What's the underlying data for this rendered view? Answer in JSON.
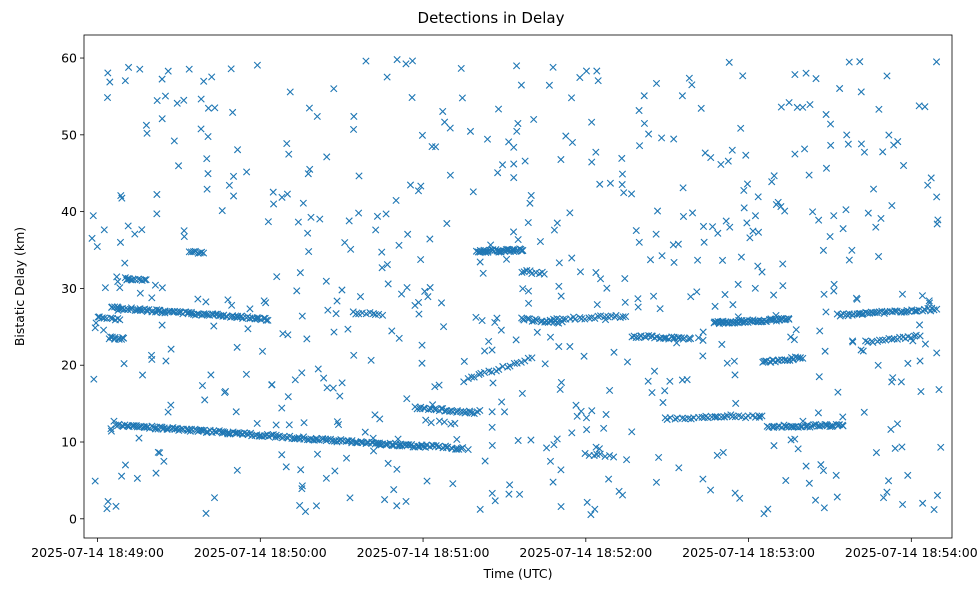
{
  "chart_data": {
    "type": "scatter",
    "title": "Detections in Delay",
    "xlabel": "Time (UTC)",
    "ylabel": "Bistatic Delay (km)",
    "x_start": "2025-07-14 18:48:55",
    "x_end": "2025-07-14 18:54:15",
    "xlim_seconds_from_x_start": [
      0,
      320
    ],
    "ylim": [
      -2.5,
      63
    ],
    "x_ticks": [
      {
        "label": "2025-07-14 18:49:00",
        "seconds": 5
      },
      {
        "label": "2025-07-14 18:50:00",
        "seconds": 65
      },
      {
        "label": "2025-07-14 18:51:00",
        "seconds": 125
      },
      {
        "label": "2025-07-14 18:52:00",
        "seconds": 185
      },
      {
        "label": "2025-07-14 18:53:00",
        "seconds": 245
      },
      {
        "label": "2025-07-14 18:54:00",
        "seconds": 305
      }
    ],
    "y_ticks": [
      0,
      10,
      20,
      30,
      40,
      50,
      60
    ],
    "marker": "x",
    "color": "#1f77b4",
    "grid": false,
    "legend": "none",
    "series": [
      {
        "name": "",
        "tracks": [
          {
            "x": [
              10,
              68
            ],
            "y": [
              27.5,
              26.0
            ],
            "n": 90
          },
          {
            "x": [
              12,
              54
            ],
            "y": [
              12.2,
              11.2
            ],
            "n": 70
          },
          {
            "x": [
              54,
              108
            ],
            "y": [
              11.2,
              9.8
            ],
            "n": 80
          },
          {
            "x": [
              108,
              125
            ],
            "y": [
              9.8,
              9.4
            ],
            "n": 30
          },
          {
            "x": [
              125,
              140
            ],
            "y": [
              9.5,
              9.1
            ],
            "n": 20
          },
          {
            "x": [
              122,
              145
            ],
            "y": [
              14.5,
              13.8
            ],
            "n": 30
          },
          {
            "x": [
              140,
              165
            ],
            "y": [
              18,
              21
            ],
            "n": 20
          },
          {
            "x": [
              145,
              162
            ],
            "y": [
              34.8,
              35.0
            ],
            "n": 40
          },
          {
            "x": [
              161,
              176
            ],
            "y": [
              26.0,
              25.6
            ],
            "n": 20
          },
          {
            "x": [
              172,
              200
            ],
            "y": [
              26.0,
              26.4
            ],
            "n": 25
          },
          {
            "x": [
              214,
              250
            ],
            "y": [
              13.0,
              13.4
            ],
            "n": 30
          },
          {
            "x": [
              202,
              224
            ],
            "y": [
              23.8,
              23.4
            ],
            "n": 30
          },
          {
            "x": [
              232,
              260
            ],
            "y": [
              25.5,
              26.0
            ],
            "n": 60
          },
          {
            "x": [
              252,
              280
            ],
            "y": [
              12.0,
              12.2
            ],
            "n": 40
          },
          {
            "x": [
              278,
              314
            ],
            "y": [
              26.5,
              27.3
            ],
            "n": 50
          },
          {
            "x": [
              250,
              265
            ],
            "y": [
              20.4,
              21.0
            ],
            "n": 25
          },
          {
            "x": [
              288,
              308
            ],
            "y": [
              23.0,
              23.8
            ],
            "n": 20
          },
          {
            "x": [
              16,
              23
            ],
            "y": [
              31.2,
              31.0
            ],
            "n": 10
          },
          {
            "x": [
              5,
              13
            ],
            "y": [
              26.3,
              26.0
            ],
            "n": 10
          },
          {
            "x": [
              9,
              15
            ],
            "y": [
              23.6,
              23.4
            ],
            "n": 10
          },
          {
            "x": [
              39,
              44
            ],
            "y": [
              34.7,
              34.6
            ],
            "n": 8
          },
          {
            "x": [
              99,
              110
            ],
            "y": [
              26.8,
              26.6
            ],
            "n": 10
          },
          {
            "x": [
              185,
              195
            ],
            "y": [
              8.4,
              8.2
            ],
            "n": 8
          },
          {
            "x": [
              162,
              170
            ],
            "y": [
              32.2,
              32.0
            ],
            "n": 8
          }
        ],
        "noise": {
          "x_range": [
            2,
            316
          ],
          "y_range": [
            0.5,
            60
          ],
          "n": 620,
          "seed": 71425
        }
      }
    ]
  }
}
